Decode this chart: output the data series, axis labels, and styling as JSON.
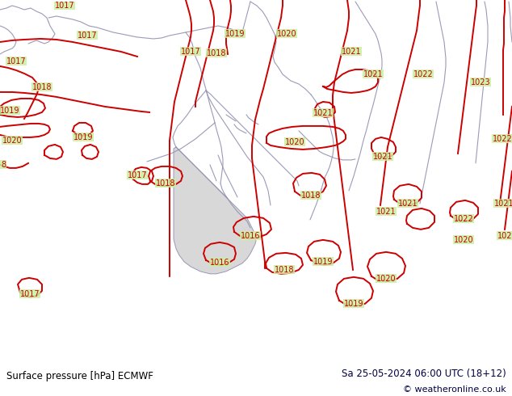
{
  "title_left": "Surface pressure [hPa] ECMWF",
  "title_right": "Sa 25-05-2024 06:00 UTC (18+12)",
  "copyright": "© weatheronline.co.uk",
  "bg_color": "#c8f0a0",
  "sea_color": "#c8c8c8",
  "contour_color": "#cc0000",
  "border_color": "#9090b0",
  "text_color_left": "#000000",
  "text_color_right": "#000044",
  "bottom_bar_color": "#ffffff",
  "figwidth": 6.34,
  "figheight": 4.9,
  "dpi": 100
}
